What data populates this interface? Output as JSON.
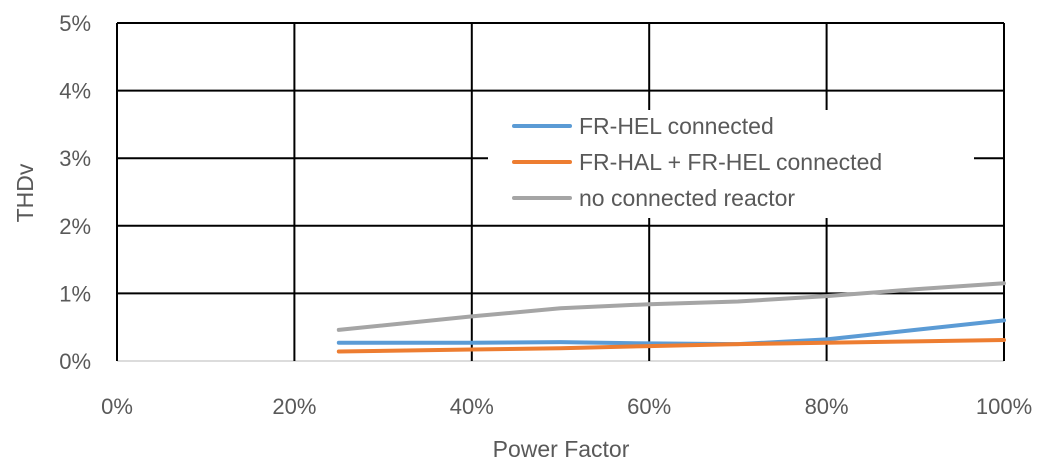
{
  "chart_data": {
    "type": "line",
    "title": "",
    "xlabel": "Power Factor",
    "ylabel": "THDv",
    "xlim": [
      0,
      100
    ],
    "ylim": [
      0,
      5
    ],
    "x_ticks": [
      "0%",
      "20%",
      "40%",
      "60%",
      "80%",
      "100%"
    ],
    "y_ticks": [
      "0%",
      "1%",
      "2%",
      "3%",
      "4%",
      "5%"
    ],
    "grid": true,
    "legend_position": "top-right",
    "series": [
      {
        "name": "FR-HEL connected",
        "color": "#5B9BD5",
        "x": [
          25,
          40,
          50,
          60,
          70,
          80,
          90,
          100
        ],
        "y": [
          0.27,
          0.27,
          0.28,
          0.26,
          0.25,
          0.32,
          0.46,
          0.6
        ]
      },
      {
        "name": "FR-HAL + FR-HEL connected",
        "color": "#ED7D31",
        "x": [
          25,
          40,
          50,
          60,
          70,
          80,
          90,
          100
        ],
        "y": [
          0.14,
          0.17,
          0.19,
          0.22,
          0.25,
          0.27,
          0.29,
          0.31
        ]
      },
      {
        "name": "no connected reactor",
        "color": "#A5A5A5",
        "x": [
          25,
          40,
          50,
          60,
          70,
          80,
          90,
          100
        ],
        "y": [
          0.46,
          0.66,
          0.78,
          0.84,
          0.88,
          0.96,
          1.06,
          1.15
        ]
      }
    ]
  }
}
